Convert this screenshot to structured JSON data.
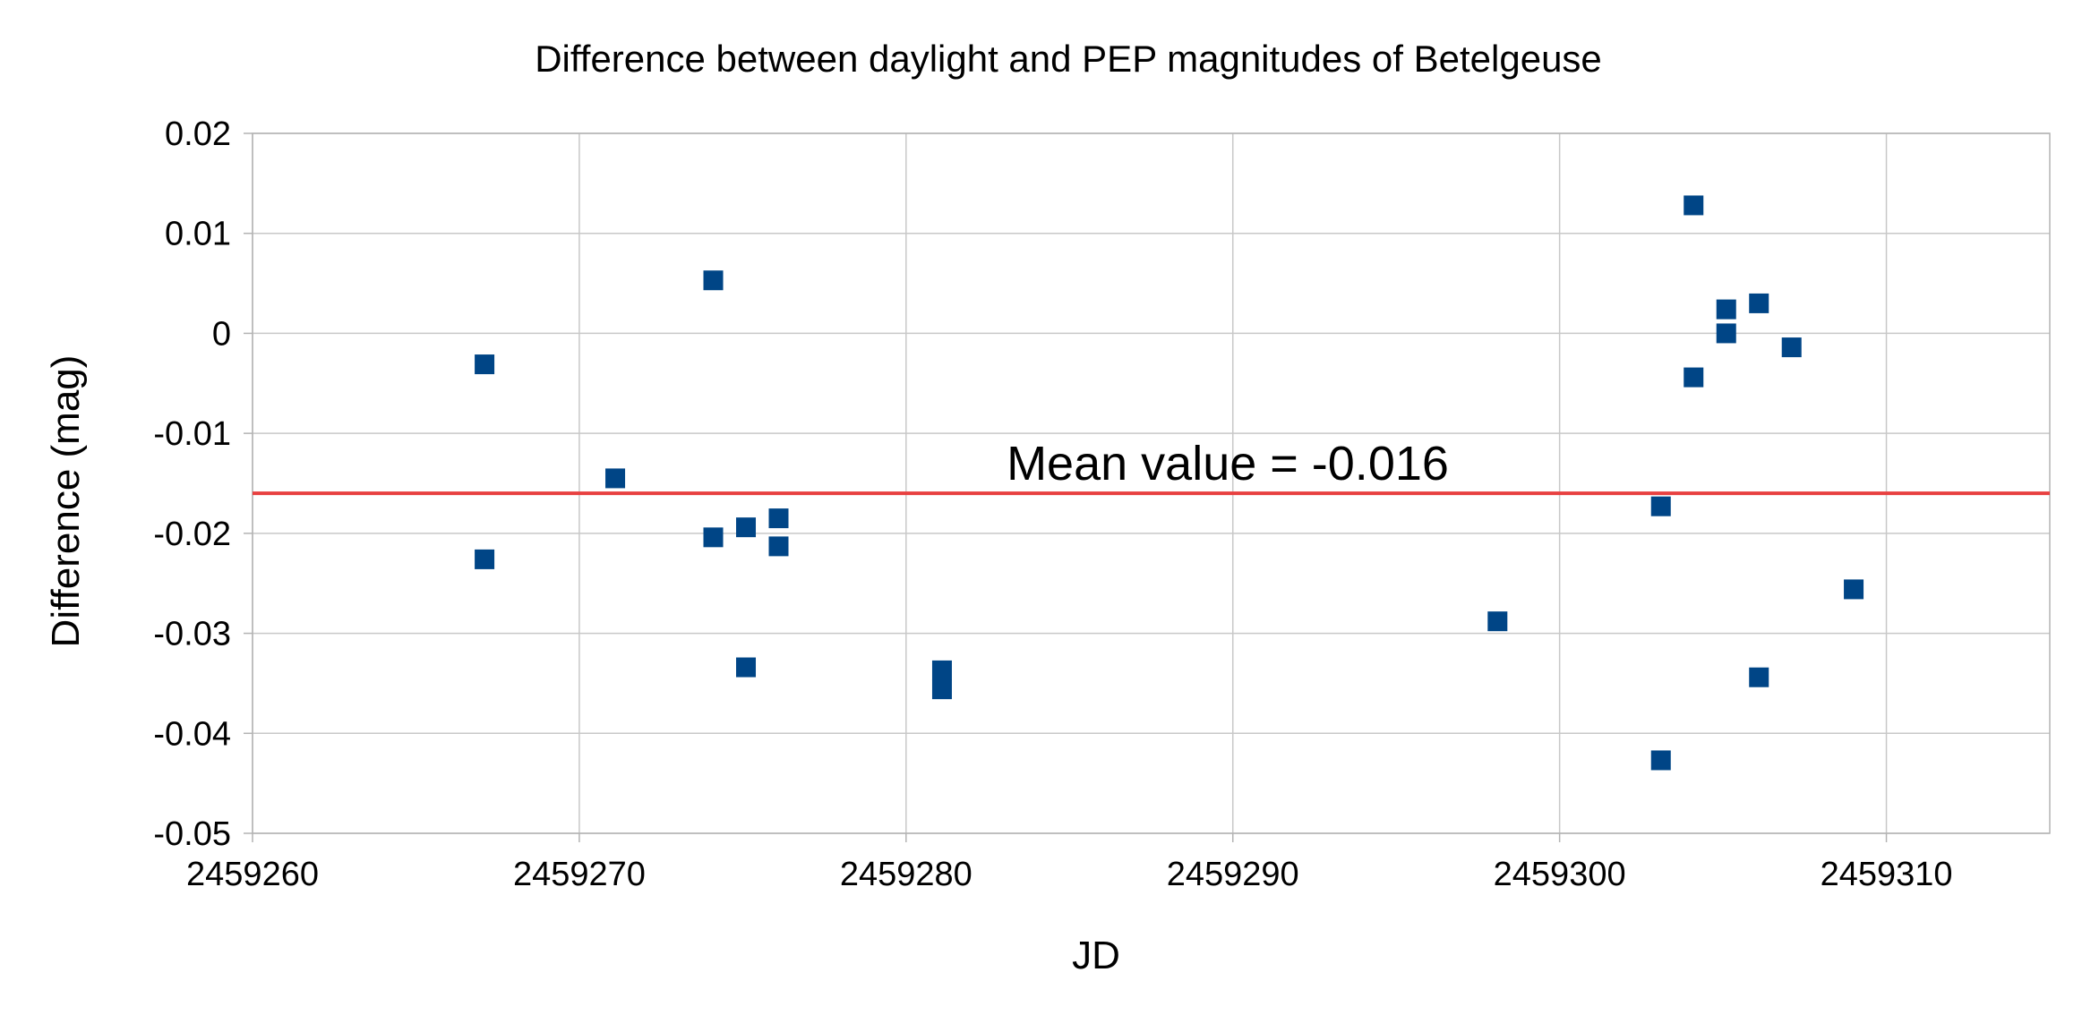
{
  "chart_data": {
    "type": "scatter",
    "title": "Difference between daylight and PEP magnitudes of Betelgeuse",
    "xlabel": "JD",
    "ylabel": "Difference (mag)",
    "xlim": [
      2459260,
      2459315
    ],
    "ylim": [
      -0.05,
      0.02
    ],
    "xticks": [
      2459260,
      2459270,
      2459280,
      2459290,
      2459300,
      2459310
    ],
    "xtick_labels": [
      "2459260",
      "2459270",
      "2459280",
      "2459290",
      "2459300",
      "2459310"
    ],
    "yticks": [
      0.02,
      0.01,
      0,
      -0.01,
      -0.02,
      -0.03,
      -0.04,
      -0.05
    ],
    "ytick_labels": [
      "0.02",
      "0.01",
      "0",
      "-0.01",
      "-0.02",
      "-0.03",
      "-0.04",
      "-0.05"
    ],
    "grid": true,
    "marker_color": "#004586",
    "mean_line": {
      "value": -0.016,
      "label": "Mean value = -0.016",
      "color": "#e84040"
    },
    "series": [
      {
        "name": "Difference",
        "points": [
          {
            "x": 2459267.1,
            "y": -0.0031
          },
          {
            "x": 2459267.1,
            "y": -0.0226
          },
          {
            "x": 2459271.1,
            "y": -0.0145
          },
          {
            "x": 2459274.1,
            "y": 0.0053
          },
          {
            "x": 2459274.1,
            "y": -0.0204
          },
          {
            "x": 2459275.1,
            "y": -0.0194
          },
          {
            "x": 2459275.1,
            "y": -0.0334
          },
          {
            "x": 2459276.1,
            "y": -0.0185
          },
          {
            "x": 2459276.1,
            "y": -0.0213
          },
          {
            "x": 2459281.1,
            "y": -0.0337
          },
          {
            "x": 2459281.1,
            "y": -0.0356
          },
          {
            "x": 2459298.1,
            "y": -0.0288
          },
          {
            "x": 2459303.1,
            "y": -0.0173
          },
          {
            "x": 2459303.1,
            "y": -0.0427
          },
          {
            "x": 2459304.1,
            "y": 0.0128
          },
          {
            "x": 2459304.1,
            "y": -0.0044
          },
          {
            "x": 2459305.1,
            "y": 0.0024
          },
          {
            "x": 2459305.1,
            "y": 0.0
          },
          {
            "x": 2459306.1,
            "y": 0.003
          },
          {
            "x": 2459306.1,
            "y": -0.0344
          },
          {
            "x": 2459307.1,
            "y": -0.0014
          },
          {
            "x": 2459309.0,
            "y": -0.0256
          }
        ]
      }
    ]
  }
}
